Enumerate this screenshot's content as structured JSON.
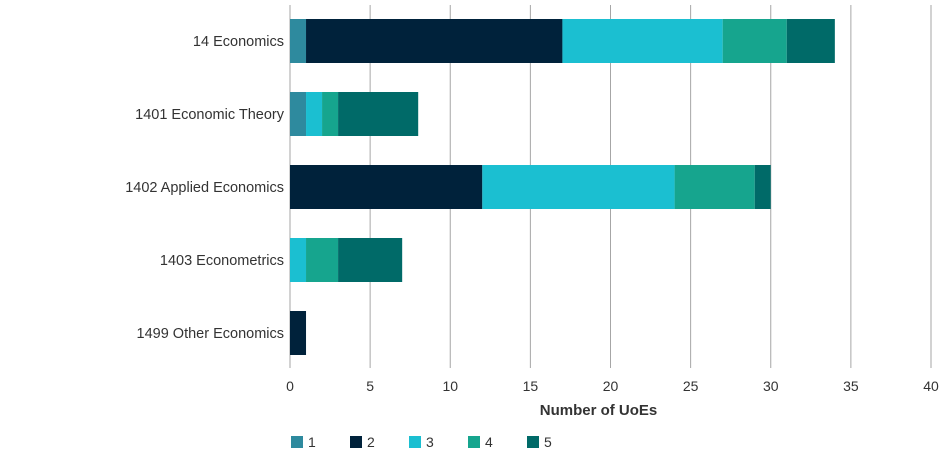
{
  "chart_data": {
    "type": "bar",
    "orientation": "horizontal",
    "stacked": true,
    "categories": [
      "14 Economics",
      "1401 Economic Theory",
      "1402 Applied Economics",
      "1403 Econometrics",
      "1499 Other Economics"
    ],
    "series": [
      {
        "name": "1",
        "color": "#2e8a9e",
        "values": [
          1,
          1,
          0,
          0,
          0
        ]
      },
      {
        "name": "2",
        "color": "#00223b",
        "values": [
          16,
          0,
          12,
          0,
          1
        ]
      },
      {
        "name": "3",
        "color": "#1bbfd1",
        "values": [
          10,
          1,
          12,
          1,
          0
        ]
      },
      {
        "name": "4",
        "color": "#16a58e",
        "values": [
          4,
          1,
          5,
          2,
          0
        ]
      },
      {
        "name": "5",
        "color": "#006a68",
        "values": [
          3,
          5,
          1,
          4,
          0
        ]
      }
    ],
    "xlim": [
      0,
      40
    ],
    "xticks": [
      0,
      5,
      10,
      15,
      20,
      25,
      30,
      35,
      40
    ],
    "xlabel": "Number of UoEs",
    "ylabel": "",
    "title": "",
    "grid": true,
    "legend": "bottom-left"
  }
}
